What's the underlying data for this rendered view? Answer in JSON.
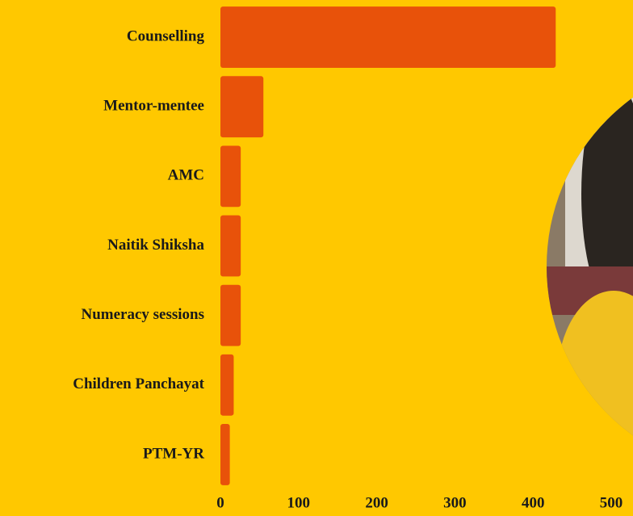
{
  "chart_data": {
    "type": "barh",
    "categories": [
      "Counselling",
      "Mentor-mentee",
      "AMC",
      "Naitik Shiksha",
      "Numeracy sessions",
      "Children Panchayat",
      "PTM-YR"
    ],
    "values": [
      429,
      55,
      26,
      26,
      26,
      17,
      12
    ],
    "color": "#e8520a",
    "xlim": [
      0,
      500
    ],
    "xticks": [
      0,
      100,
      200,
      300,
      400,
      500
    ]
  }
}
